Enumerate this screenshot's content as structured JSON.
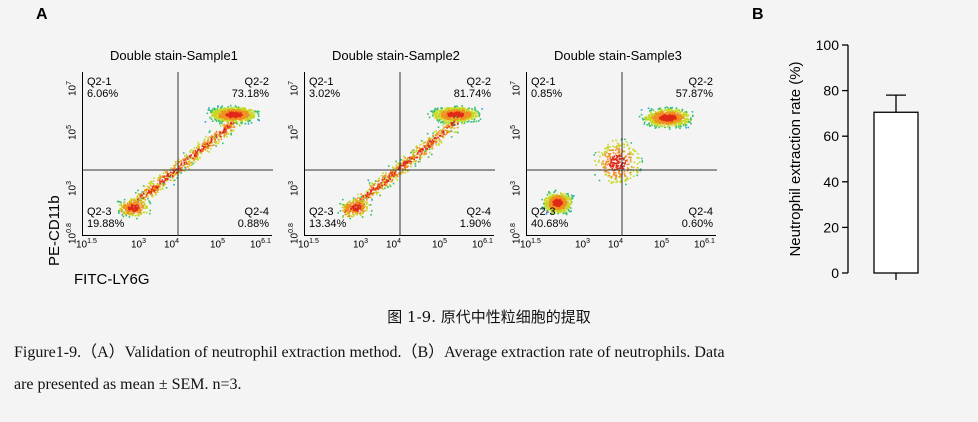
{
  "panel_a_label": "A",
  "panel_b_label": "B",
  "flow": {
    "y_axis_title": "PE-CD11b",
    "x_axis_title": "FITC-LY6G",
    "y_tick_base": "10",
    "y_tick_exps": [
      "0.8",
      "3",
      "5",
      "7"
    ],
    "x_ticks": [
      {
        "base": "10",
        "exp": "1.5"
      },
      {
        "base": "10",
        "exp": "3"
      },
      {
        "base": "10",
        "exp": "4"
      },
      {
        "base": "10",
        "exp": "5"
      },
      {
        "base": "10",
        "exp": "6.1"
      }
    ],
    "plots": [
      {
        "title": "Double stain-Sample1",
        "q1": {
          "name": "Q2-1",
          "value": "6.06%"
        },
        "q2": {
          "name": "Q2-2",
          "value": "73.18%"
        },
        "q3": {
          "name": "Q2-3",
          "value": "19.88%"
        },
        "q4": {
          "name": "Q2-4",
          "value": "0.88%"
        }
      },
      {
        "title": "Double stain-Sample2",
        "q1": {
          "name": "Q2-1",
          "value": "3.02%"
        },
        "q2": {
          "name": "Q2-2",
          "value": "81.74%"
        },
        "q3": {
          "name": "Q2-3",
          "value": "13.34%"
        },
        "q4": {
          "name": "Q2-4",
          "value": "1.90%"
        }
      },
      {
        "title": "Double stain-Sample3",
        "q1": {
          "name": "Q2-1",
          "value": "0.85%"
        },
        "q2": {
          "name": "Q2-2",
          "value": "57.87%"
        },
        "q3": {
          "name": "Q2-3",
          "value": "40.68%"
        },
        "q4": {
          "name": "Q2-4",
          "value": "0.60%"
        }
      }
    ]
  },
  "chart_data": {
    "type": "bar",
    "categories": [
      ""
    ],
    "values": [
      70.5
    ],
    "error": [
      7.5
    ],
    "ylabel": "Neutrophil extraction rate (%)",
    "ylim": [
      0,
      100
    ],
    "yticks": [
      "0",
      "20",
      "40",
      "60",
      "80",
      "100"
    ],
    "grid": false
  },
  "caption": {
    "cn": "图 1-9. 原代中性粒细胞的提取",
    "en_line1": "Figure1-9.（A）Validation of neutrophil extraction method.（B）Average extraction rate of neutrophils. Data",
    "en_line2": "are presented as mean ± SEM. n=3."
  }
}
